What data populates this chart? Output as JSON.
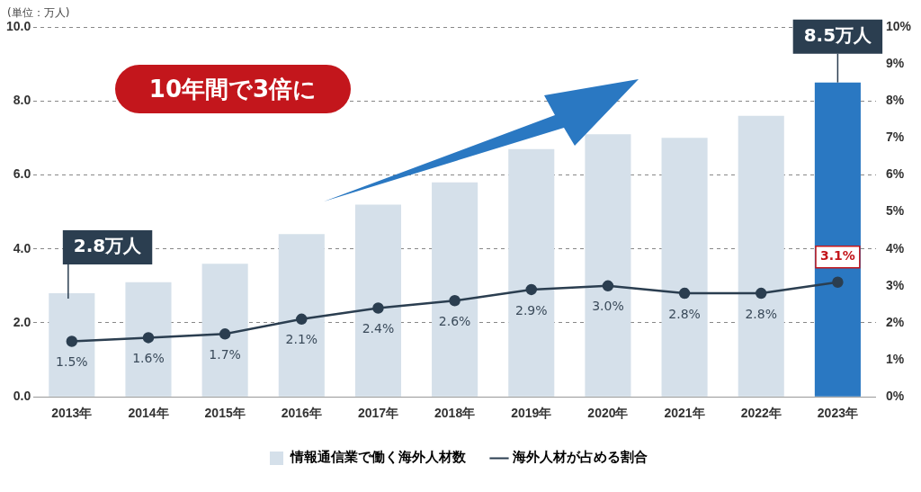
{
  "chart_data": {
    "type": "bar",
    "categories": [
      "2013年",
      "2014年",
      "2015年",
      "2016年",
      "2017年",
      "2018年",
      "2019年",
      "2020年",
      "2021年",
      "2022年",
      "2023年"
    ],
    "series": [
      {
        "name": "情報通信業で働く海外人材数",
        "colors": [
          "#d5e0ea",
          "#d5e0ea",
          "#d5e0ea",
          "#d5e0ea",
          "#d5e0ea",
          "#d5e0ea",
          "#d5e0ea",
          "#d5e0ea",
          "#d5e0ea",
          "#d5e0ea",
          "#2a78c2"
        ],
        "values": [
          2.8,
          3.1,
          3.6,
          4.4,
          5.2,
          5.8,
          6.7,
          7.1,
          7.0,
          7.6,
          8.5
        ],
        "value_labels": [
          "2.8万人",
          null,
          null,
          null,
          null,
          null,
          null,
          null,
          null,
          null,
          "8.5万人"
        ]
      },
      {
        "name": "海外人材が占める割合",
        "type": "line",
        "axis": "y2",
        "color": "#2b3e50",
        "marker": "circle",
        "values": [
          1.5,
          1.6,
          1.7,
          2.1,
          2.4,
          2.6,
          2.9,
          3.0,
          2.8,
          2.8,
          3.1
        ],
        "value_labels": [
          "1.5%",
          "1.6%",
          "1.7%",
          "2.1%",
          "2.4%",
          "2.6%",
          "2.9%",
          "3.0%",
          "2.8%",
          "2.8%",
          "3.1%"
        ]
      }
    ],
    "ylim": [
      0,
      10
    ],
    "yticks": [
      {
        "value": 0,
        "label": "0.0"
      },
      {
        "value": 2,
        "label": "2.0"
      },
      {
        "value": 4,
        "label": "4.0"
      },
      {
        "value": 6,
        "label": "6.0"
      },
      {
        "value": 8,
        "label": "8.0"
      },
      {
        "value": 10,
        "label": "10.0"
      }
    ],
    "y2lim": [
      0,
      10
    ],
    "y2ticks": [
      {
        "value": 0,
        "label": "0%"
      },
      {
        "value": 1,
        "label": "1%"
      },
      {
        "value": 2,
        "label": "2%"
      },
      {
        "value": 3,
        "label": "3%"
      },
      {
        "value": 4,
        "label": "4%"
      },
      {
        "value": 5,
        "label": "5%"
      },
      {
        "value": 6,
        "label": "6%"
      },
      {
        "value": 7,
        "label": "7%"
      },
      {
        "value": 8,
        "label": "8%"
      },
      {
        "value": 9,
        "label": "9%"
      },
      {
        "value": 10,
        "label": "10%"
      }
    ],
    "grid": "y",
    "legend": "bottom",
    "annotations": [
      "(単位：万人)",
      "10年間で3倍に"
    ]
  }
}
